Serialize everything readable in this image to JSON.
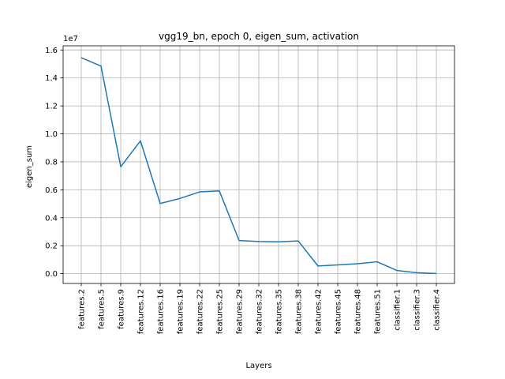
{
  "chart_data": {
    "type": "line",
    "title": "vgg19_bn, epoch 0, eigen_sum, activation",
    "xlabel": "Layers",
    "ylabel": "eigen_sum",
    "y_offset_label": "1e7",
    "y_scale": 10000000,
    "categories": [
      "features.2",
      "features.5",
      "features.9",
      "features.12",
      "features.16",
      "features.19",
      "features.22",
      "features.25",
      "features.29",
      "features.32",
      "features.35",
      "features.38",
      "features.42",
      "features.45",
      "features.48",
      "features.51",
      "classifier.1",
      "classifier.3",
      "classifier.4"
    ],
    "series": [
      {
        "values": [
          15450000,
          14850000,
          7650000,
          9500000,
          5020000,
          5380000,
          5850000,
          5920000,
          2370000,
          2300000,
          2280000,
          2340000,
          550000,
          630000,
          710000,
          850000,
          230000,
          70000,
          10000
        ],
        "color": "#1f77b4"
      }
    ],
    "ylim": [
      -700000,
      16300000
    ],
    "y_ticks": [
      0,
      2000000,
      4000000,
      6000000,
      8000000,
      10000000,
      12000000,
      14000000,
      16000000
    ],
    "y_tick_labels": [
      "0.0",
      "0.2",
      "0.4",
      "0.6",
      "0.8",
      "1.0",
      "1.2",
      "1.4",
      "1.6"
    ],
    "grid": true,
    "legend": "none"
  }
}
